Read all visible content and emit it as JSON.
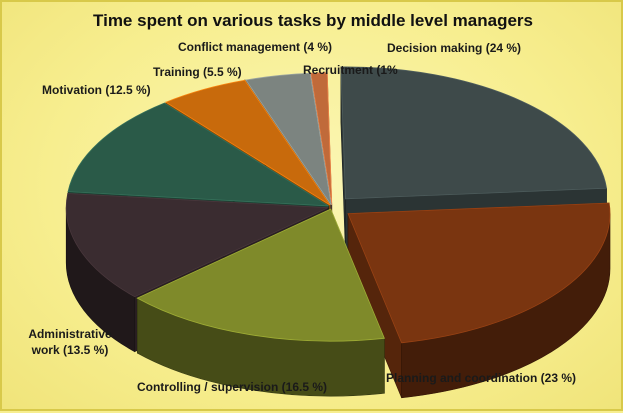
{
  "chart_data": {
    "type": "pie",
    "title": "Time spent on various tasks by middle level managers",
    "unit": "%",
    "slices": [
      {
        "name": "Decision making",
        "label": "Decision making (24 %)",
        "value": 24,
        "color": "#3e4a4a",
        "exploded": true
      },
      {
        "name": "Planning and coordination",
        "label": "Planning and coordination (23 %)",
        "value": 23,
        "color": "#7a3510",
        "exploded": true
      },
      {
        "name": "Controlling / supervision",
        "label": "Controlling / supervision (16.5 %)",
        "value": 16.5,
        "color": "#7f8a2a",
        "exploded": false
      },
      {
        "name": "Administrative work",
        "label": [
          "Administrative",
          "work (13.5 %)"
        ],
        "value": 13.5,
        "color": "#3a2c30",
        "exploded": false
      },
      {
        "name": "Motivation",
        "label": "Motivation (12.5 %)",
        "value": 12.5,
        "color": "#2a5a48",
        "exploded": false
      },
      {
        "name": "Training",
        "label": "Training (5.5 %)",
        "value": 5.5,
        "color": "#c86a0c",
        "exploded": false
      },
      {
        "name": "Conflict management",
        "label": "Conflict management (4 %)",
        "value": 4,
        "color": "#7c8480",
        "exploded": false
      },
      {
        "name": "Recruitment",
        "label": "Recruitment (1%",
        "value": 1,
        "color": "#c06a3a",
        "exploded": false
      }
    ]
  }
}
